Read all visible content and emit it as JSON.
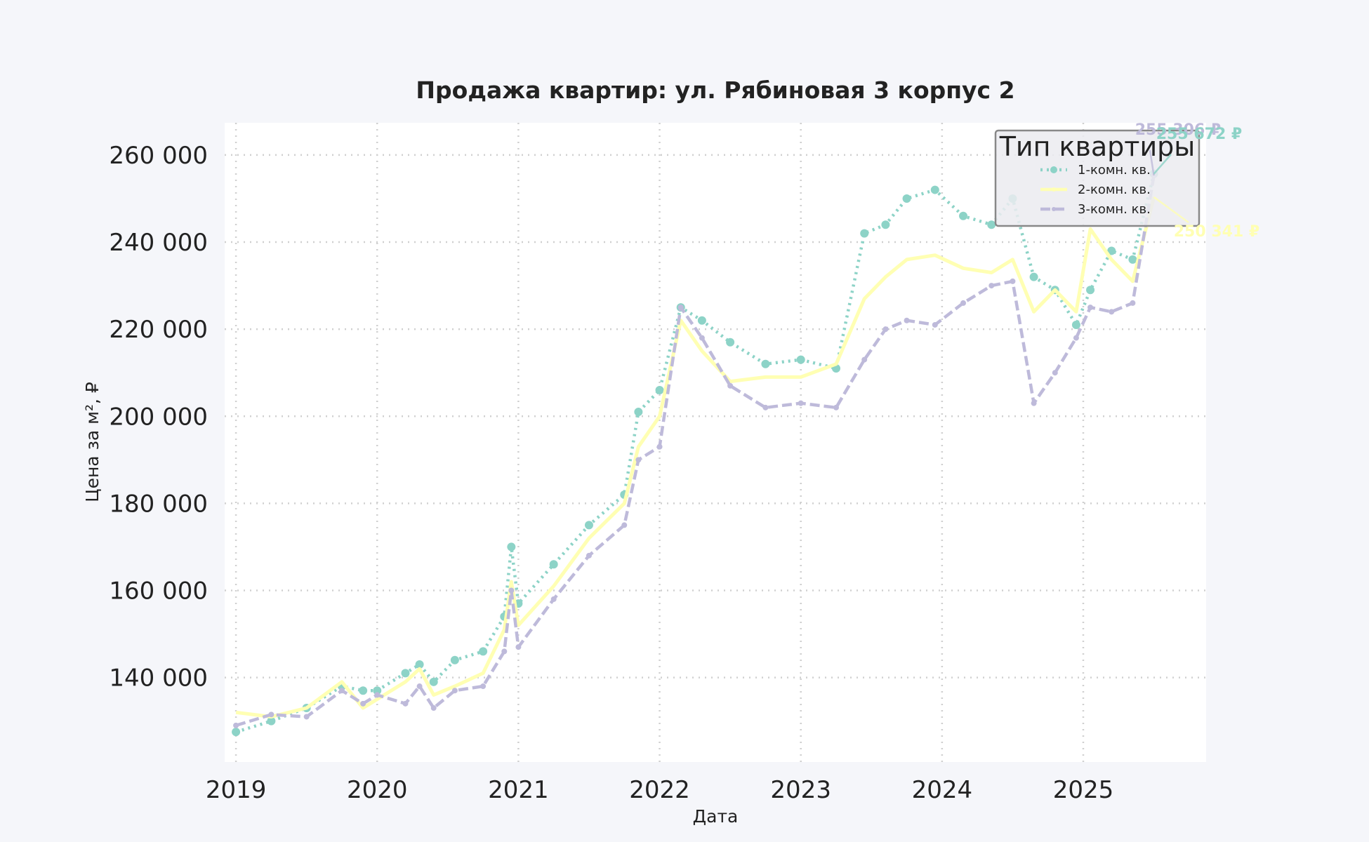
{
  "chart_data": {
    "type": "line",
    "title": "Продажа квартир: ул. Рябиновая 3 корпус 2",
    "xlabel": "Дата",
    "ylabel": "Цена за м², ₽",
    "x_ticks": [
      "2019",
      "2020",
      "2021",
      "2022",
      "2023",
      "2024",
      "2025"
    ],
    "y_ticks": [
      "140 000",
      "160 000",
      "180 000",
      "200 000",
      "220 000",
      "240 000",
      "260 000"
    ],
    "y_tick_values": [
      140000,
      160000,
      180000,
      200000,
      220000,
      240000,
      260000
    ],
    "xlim": [
      2018.92,
      2025.87
    ],
    "ylim": [
      120600,
      267400
    ],
    "grid": true,
    "legend_position": "upper right",
    "legend_title": "Тип квартиры",
    "x": [
      2019.0,
      2019.25,
      2019.5,
      2019.75,
      2019.9,
      2020.0,
      2020.2,
      2020.3,
      2020.4,
      2020.55,
      2020.75,
      2020.9,
      2020.95,
      2021.0,
      2021.25,
      2021.5,
      2021.75,
      2021.85,
      2022.0,
      2022.15,
      2022.3,
      2022.5,
      2022.75,
      2023.0,
      2023.25,
      2023.45,
      2023.6,
      2023.75,
      2023.95,
      2024.15,
      2024.35,
      2024.5,
      2024.65,
      2024.8,
      2024.95,
      2025.05,
      2025.2,
      2025.35,
      2025.5
    ],
    "series": [
      {
        "name": "1-комн. кв.",
        "color": "#8dd3c7",
        "style": "dotted",
        "marker": "circle",
        "values": [
          127500,
          130000,
          133000,
          138000,
          137000,
          137000,
          141000,
          143000,
          139000,
          144000,
          146000,
          154000,
          170000,
          157000,
          166000,
          175000,
          182000,
          201000,
          206000,
          225000,
          222000,
          217000,
          212000,
          213000,
          211000,
          242000,
          244000,
          250000,
          252000,
          246000,
          244000,
          250000,
          232000,
          229000,
          221000,
          229000,
          238000,
          236000,
          255672
        ]
      },
      {
        "name": "2-комн. кв.",
        "color": "#ffffb3",
        "style": "solid",
        "marker": "none",
        "values": [
          132000,
          131000,
          133000,
          139000,
          133000,
          135000,
          139000,
          142000,
          136000,
          138000,
          141000,
          151000,
          162000,
          152000,
          161000,
          172000,
          180000,
          193000,
          200000,
          222000,
          215000,
          208000,
          209000,
          209000,
          212000,
          227000,
          232000,
          236000,
          237000,
          234000,
          233000,
          236000,
          224000,
          229000,
          224000,
          243000,
          236000,
          231000,
          250341
        ]
      },
      {
        "name": "3-комн. кв.",
        "color": "#bebada",
        "style": "dashed",
        "marker": "star",
        "values": [
          129000,
          131500,
          131000,
          137000,
          134000,
          136000,
          134000,
          138000,
          133000,
          137000,
          138000,
          146000,
          160000,
          147000,
          158000,
          168000,
          175000,
          190000,
          193000,
          225000,
          218000,
          207000,
          202000,
          203000,
          202000,
          213000,
          220000,
          222000,
          221000,
          226000,
          230000,
          231000,
          203000,
          210000,
          218000,
          225000,
          224000,
          226000,
          255306
        ]
      }
    ],
    "annotations": [
      {
        "text": "255 306 ₽",
        "series": "3-комн. кв.",
        "color": "#bebada"
      },
      {
        "text": "255 672 ₽",
        "series": "1-комн. кв.",
        "color": "#8dd3c7"
      },
      {
        "text": "250 341 ₽",
        "series": "2-комн. кв.",
        "color": "#ffffb3"
      }
    ]
  }
}
